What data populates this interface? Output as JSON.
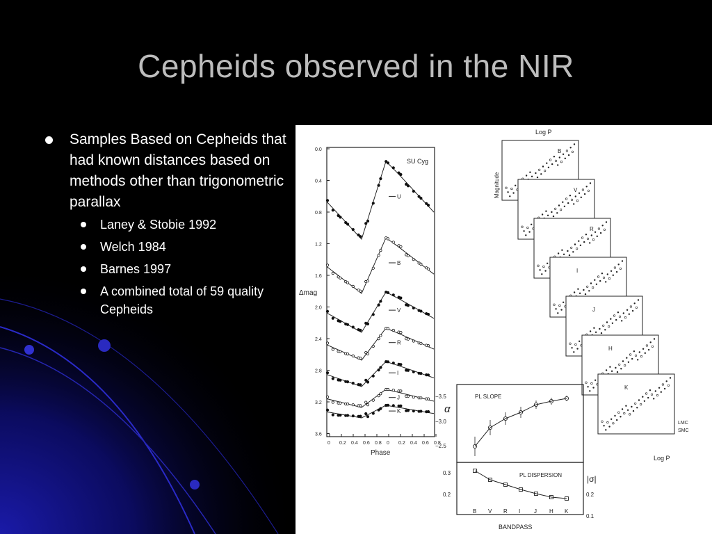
{
  "slide": {
    "title": "Cepheids observed in the NIR",
    "bullet_main": "Samples Based on Cepheids that had known distances based on methods other than trigonometric parallax",
    "sub_bullets": [
      "Laney & Stobie 1992",
      "Welch 1984",
      "Barnes 1997",
      "A combined total of 59 quality Cepheids"
    ]
  },
  "light_curves": {
    "star_label": "SU Cyg",
    "y_label": "Δmag",
    "x_label": "Phase",
    "y_ticks": [
      "0.0",
      "0.4",
      "0.8",
      "1.2",
      "1.6",
      "2.0",
      "2.4",
      "2.8",
      "3.2",
      "3.6"
    ],
    "x_ticks": [
      "0",
      "0.2",
      "0.4",
      "0.6",
      "0.8",
      "0",
      "0.2",
      "0.4",
      "0.6",
      "0.8"
    ],
    "bands": [
      "U",
      "B",
      "V",
      "R",
      "I",
      "J",
      "K"
    ]
  },
  "pl_relations": {
    "top_axis_label": "Log P",
    "bottom_axis_label": "Log P",
    "y_label": "Magnitude",
    "legend": [
      "LMC",
      "SMC"
    ],
    "bands": [
      "B",
      "V",
      "R",
      "I",
      "J",
      "H",
      "K"
    ]
  },
  "slope_panel": {
    "title_top": "PL SLOPE",
    "title_bottom": "PL DISPERSION",
    "alpha_label": "α",
    "sigma_label": "|σ|",
    "x_label": "BANDPASS",
    "bands": [
      "B",
      "V",
      "R",
      "I",
      "J",
      "H",
      "K"
    ],
    "alpha_ticks": [
      "−3.5",
      "−3.0",
      "−2.5"
    ],
    "sigma_ticks_left": [
      "0.3",
      "0.2"
    ],
    "sigma_ticks_right": [
      "0.2",
      "0.1"
    ]
  }
}
